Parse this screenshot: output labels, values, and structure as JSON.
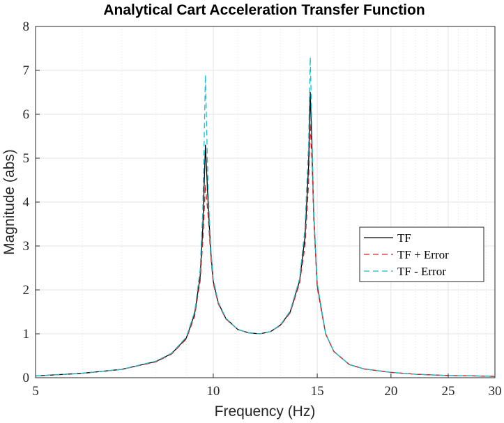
{
  "chart_data": {
    "type": "line",
    "title": "Analytical Cart Acceleration Transfer Function",
    "xlabel": "Frequency   (Hz)",
    "ylabel": "Magnitude (abs)",
    "xscale": "log",
    "xlim": [
      5,
      30
    ],
    "ylim": [
      0,
      8
    ],
    "xticks": [
      5,
      10,
      15,
      20,
      25,
      30
    ],
    "xtick_labels": [
      "5",
      "10",
      "15",
      "20",
      "25",
      "30"
    ],
    "yticks": [
      0,
      1,
      2,
      3,
      4,
      5,
      6,
      7,
      8
    ],
    "ytick_labels": [
      "0",
      "1",
      "2",
      "3",
      "4",
      "5",
      "6",
      "7",
      "8"
    ],
    "grid": true,
    "legend_position": "right",
    "series": [
      {
        "name": "TF",
        "color": "#000000",
        "style": "solid",
        "x": [
          5,
          6,
          7,
          8,
          8.5,
          9,
          9.3,
          9.5,
          9.6,
          9.7,
          9.8,
          9.9,
          10,
          10.2,
          10.5,
          11,
          11.5,
          12,
          12.5,
          13,
          13.5,
          14,
          14.3,
          14.5,
          14.6,
          14.7,
          14.8,
          15,
          15.5,
          16,
          17,
          18,
          20,
          22,
          25,
          28,
          30
        ],
        "y": [
          0.04,
          0.1,
          0.19,
          0.37,
          0.55,
          0.9,
          1.45,
          2.3,
          3.4,
          5.3,
          4.0,
          2.9,
          2.2,
          1.7,
          1.35,
          1.1,
          1.02,
          1.0,
          1.05,
          1.2,
          1.5,
          2.2,
          3.2,
          4.8,
          6.5,
          5.2,
          3.7,
          2.1,
          1.0,
          0.6,
          0.3,
          0.2,
          0.12,
          0.08,
          0.05,
          0.04,
          0.03
        ]
      },
      {
        "name": "TF + Error",
        "color": "#d62728",
        "style": "dashed",
        "x": [
          5,
          6,
          7,
          8,
          8.5,
          9,
          9.3,
          9.5,
          9.6,
          9.7,
          9.8,
          9.9,
          10,
          10.2,
          10.5,
          11,
          11.5,
          12,
          12.5,
          13,
          13.5,
          14,
          14.3,
          14.5,
          14.6,
          14.7,
          14.8,
          15,
          15.5,
          16,
          17,
          18,
          20,
          22,
          25,
          28,
          30
        ],
        "y": [
          0.04,
          0.1,
          0.19,
          0.36,
          0.54,
          0.88,
          1.4,
          2.2,
          3.1,
          4.4,
          3.7,
          2.8,
          2.15,
          1.68,
          1.34,
          1.1,
          1.02,
          1.0,
          1.05,
          1.19,
          1.48,
          2.15,
          3.0,
          4.4,
          5.8,
          4.9,
          3.6,
          2.05,
          1.0,
          0.6,
          0.3,
          0.2,
          0.12,
          0.08,
          0.05,
          0.04,
          0.03
        ]
      },
      {
        "name": "TF - Error",
        "color": "#17becf",
        "style": "dashed",
        "x": [
          5,
          6,
          7,
          8,
          8.5,
          9,
          9.3,
          9.5,
          9.6,
          9.7,
          9.8,
          9.9,
          10,
          10.2,
          10.5,
          11,
          11.5,
          12,
          12.5,
          13,
          13.5,
          14,
          14.3,
          14.5,
          14.6,
          14.7,
          14.8,
          15,
          15.5,
          16,
          17,
          18,
          20,
          22,
          25,
          28,
          30
        ],
        "y": [
          0.04,
          0.1,
          0.19,
          0.38,
          0.56,
          0.92,
          1.5,
          2.45,
          3.8,
          6.9,
          4.3,
          3.0,
          2.25,
          1.72,
          1.36,
          1.1,
          1.02,
          1.0,
          1.05,
          1.21,
          1.52,
          2.25,
          3.4,
          5.3,
          7.3,
          5.5,
          3.8,
          2.15,
          1.0,
          0.6,
          0.3,
          0.2,
          0.12,
          0.08,
          0.05,
          0.04,
          0.03
        ]
      }
    ]
  }
}
